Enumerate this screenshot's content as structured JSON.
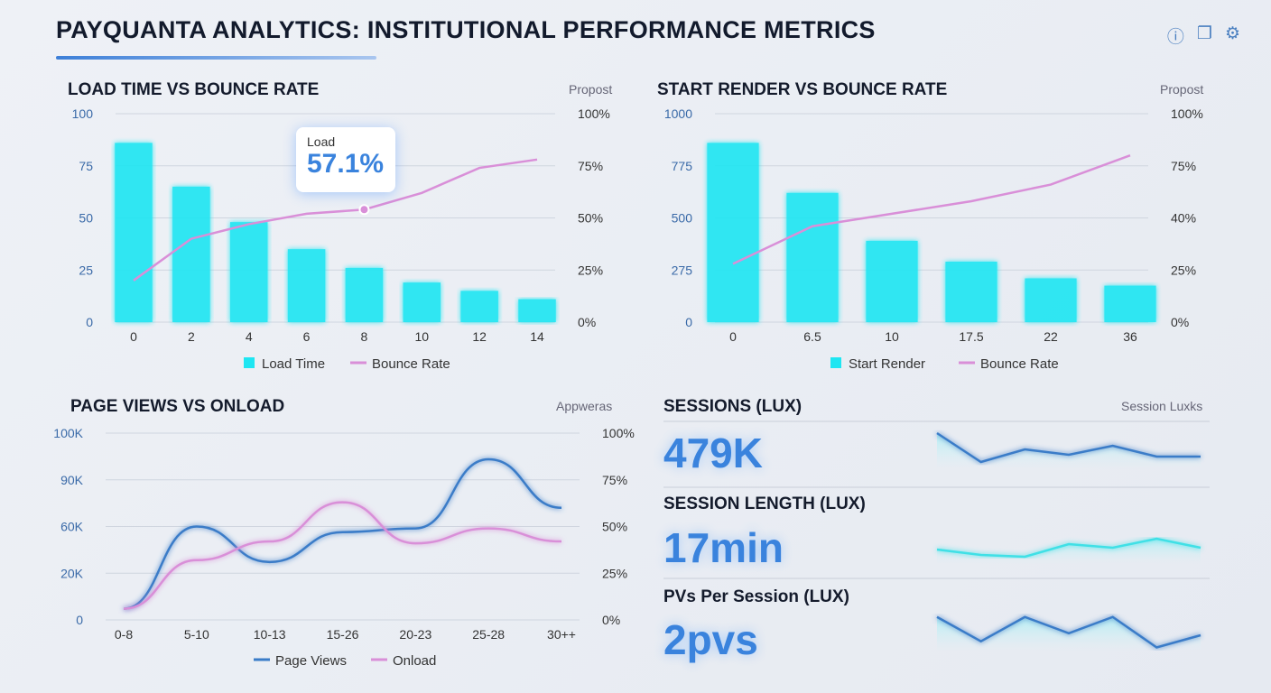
{
  "header": {
    "title": "PAYQUANTA ANALYTICS: INSTITUTIONAL PERFORMANCE METRICS",
    "icons": [
      "help-icon",
      "copy-icon",
      "gear-icon"
    ]
  },
  "colors": {
    "bar": "#1ee6f2",
    "bounce": "#d98fd8",
    "pageviews": "#3a7cc8",
    "accent": "#3a83dd",
    "spark_teal": "#3fe0e6"
  },
  "chart_data": [
    {
      "type": "bar",
      "title": "LOAD TIME VS BOUNCE RATE",
      "link": "Propost",
      "categories": [
        "0",
        "2",
        "4",
        "6",
        "8",
        "10",
        "12",
        "14"
      ],
      "yticks": [
        "0",
        "25",
        "50",
        "75",
        "100"
      ],
      "y2ticks": [
        "0%",
        "25%",
        "50%",
        "75%",
        "100%"
      ],
      "ylim": [
        0,
        100
      ],
      "series": [
        {
          "name": "Load Time",
          "kind": "bar",
          "values": [
            86,
            65,
            48,
            35,
            26,
            19,
            15,
            11
          ]
        },
        {
          "name": "Bounce Rate",
          "kind": "line",
          "values": [
            20,
            40,
            47,
            52,
            54,
            62,
            74,
            78
          ]
        }
      ],
      "tooltip": {
        "label": "Load",
        "value": "57.1%",
        "index": 4
      }
    },
    {
      "type": "bar",
      "title": "START RENDER VS BOUNCE RATE",
      "link": "Propost",
      "categories": [
        "0",
        "6.5",
        "10",
        "17.5",
        "22",
        "36"
      ],
      "yticks": [
        "0",
        "275",
        "500",
        "775",
        "1000"
      ],
      "y2ticks": [
        "0%",
        "25%",
        "40%",
        "75%",
        "100%"
      ],
      "ylim": [
        0,
        1000
      ],
      "series": [
        {
          "name": "Start Render",
          "kind": "bar",
          "values": [
            860,
            620,
            390,
            290,
            210,
            175
          ]
        },
        {
          "name": "Bounce Rate",
          "kind": "line",
          "values": [
            28,
            46,
            52,
            58,
            66,
            80
          ]
        }
      ]
    },
    {
      "type": "line",
      "title": "PAGE VIEWS VS ONLOAD",
      "link": "Appweras",
      "categories": [
        "0-8",
        "5-10",
        "10-13",
        "15-26",
        "20-23",
        "25-28",
        "30++"
      ],
      "yticks": [
        "0",
        "20K",
        "60K",
        "90K",
        "100K"
      ],
      "y2ticks": [
        "0%",
        "25%",
        "50%",
        "75%",
        "100%"
      ],
      "series": [
        {
          "name": "Page Views",
          "values": [
            6,
            50,
            31,
            47,
            49,
            86,
            60
          ]
        },
        {
          "name": "Onload",
          "values": [
            6,
            32,
            42,
            63,
            41,
            49,
            42
          ]
        }
      ]
    }
  ],
  "kpis": {
    "link": "Session Luxks",
    "items": [
      {
        "label": "SESSIONS (LUX)",
        "value": "479K",
        "spark": [
          1,
          0.2,
          0.55,
          0.4,
          0.65,
          0.35,
          0.35
        ]
      },
      {
        "label": "SESSION LENGTH (LUX)",
        "value": "17min",
        "spark": [
          0.4,
          0.25,
          0.2,
          0.55,
          0.45,
          0.7,
          0.45
        ]
      },
      {
        "label": "PVs Per Session (LUX)",
        "value": "2pvs",
        "spark": [
          0.85,
          0.25,
          0.85,
          0.45,
          0.85,
          0.1,
          0.4
        ]
      }
    ]
  }
}
